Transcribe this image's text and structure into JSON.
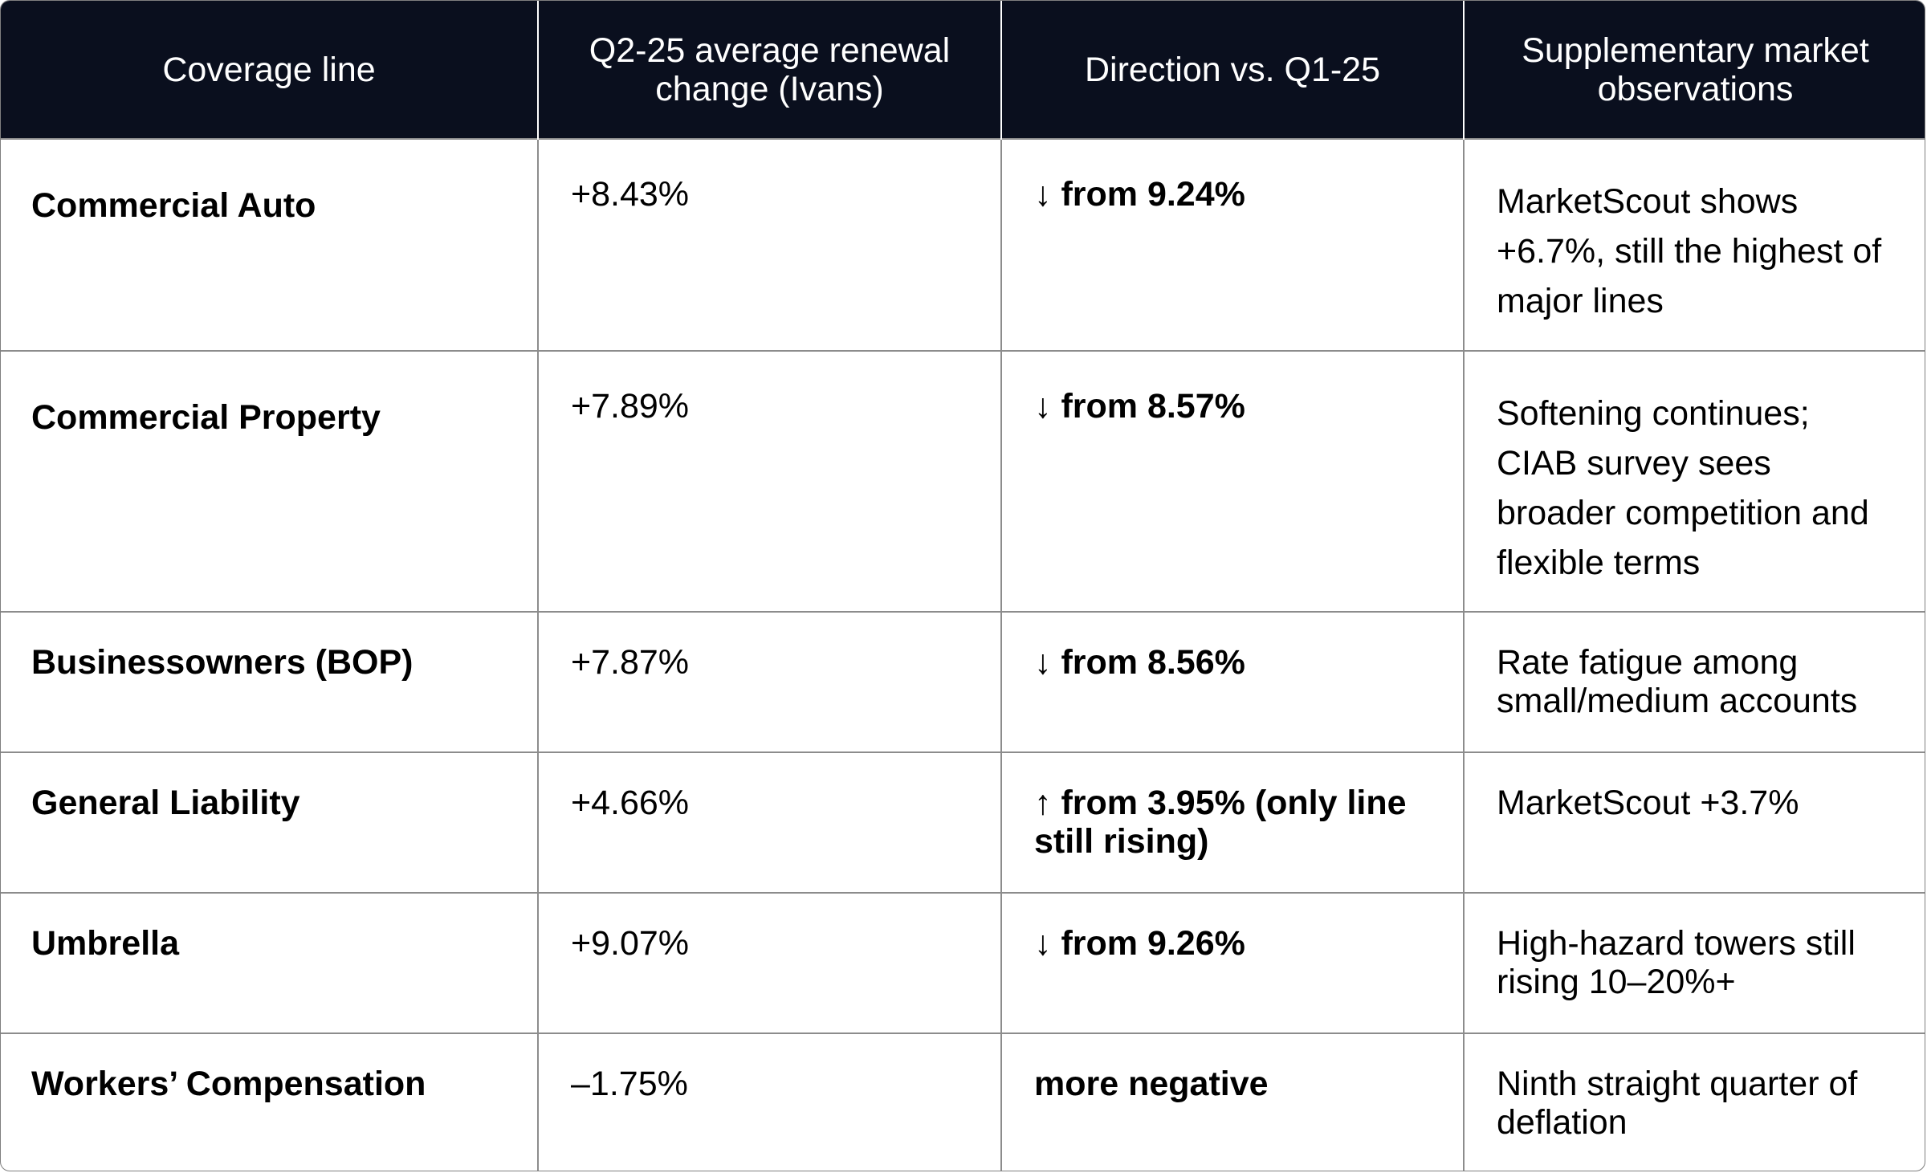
{
  "table": {
    "headers": [
      "Coverage line",
      "Q2-25 average renewal change (Ivans)",
      "Direction vs. Q1-25",
      "Supplementary market observations"
    ],
    "rows": [
      {
        "line": "Commercial Auto",
        "change": "+8.43%",
        "direction": "↓ from 9.24%",
        "observation": "MarketScout shows +6.7%, still the highest of major lines"
      },
      {
        "line": "Commercial Property",
        "change": "+7.89%",
        "direction": "↓ from 8.57%",
        "observation": "Softening continues; CIAB survey sees broader competition and flexible terms"
      },
      {
        "line": "Businessowners (BOP)",
        "change": "+7.87%",
        "direction": "↓ from 8.56%",
        "observation": "Rate fatigue among small/medium accounts"
      },
      {
        "line": "General Liability",
        "change": "+4.66%",
        "direction": "↑ from 3.95% (only line still rising)",
        "observation": "MarketScout +3.7%"
      },
      {
        "line": "Umbrella",
        "change": "+9.07%",
        "direction": "↓ from 9.26%",
        "observation": "High-hazard towers still rising 10–20%+"
      },
      {
        "line": "Workers’ Compensation",
        "change": "–1.75%",
        "direction": "more negative",
        "observation": "Ninth straight quarter of deflation"
      }
    ]
  }
}
